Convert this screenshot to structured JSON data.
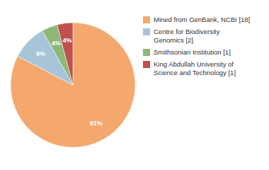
{
  "chart_data": {
    "type": "pie",
    "categories": [
      "Mined from GenBank, NCBI [18]",
      "Centre for Biodiversity\nGenomics [2]",
      "Smithsonian Institution [1]",
      "King Abdullah University of\nScience and Technology [1]"
    ],
    "values": [
      81,
      9,
      4,
      4
    ],
    "value_labels": [
      "81%",
      "9%",
      "4%",
      "4%"
    ],
    "data_labels": true,
    "colors": [
      "#F5A86E",
      "#A8C4D8",
      "#8DB87A",
      "#C0504D"
    ],
    "legend": "right"
  }
}
